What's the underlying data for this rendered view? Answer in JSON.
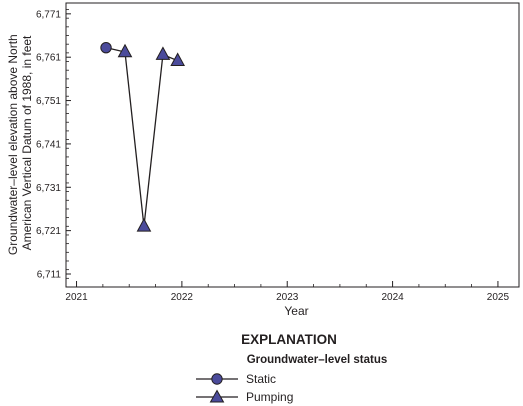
{
  "chart_data": {
    "type": "line",
    "xlabel": "Year",
    "ylabel_lines": [
      "Groundwater–level elevation above North",
      "American Vertical Datum of 1988, in feet"
    ],
    "xlim": [
      2020.9,
      2025.2
    ],
    "ylim": [
      6708,
      6773.5
    ],
    "x_ticks": [
      2021,
      2022,
      2023,
      2024,
      2025
    ],
    "x_tick_labels": [
      "2021",
      "2022",
      "2023",
      "2024",
      "2025"
    ],
    "y_ticks": [
      6711,
      6721,
      6731,
      6741,
      6751,
      6761,
      6771
    ],
    "y_tick_labels": [
      "6,711",
      "6,721",
      "6,731",
      "6,741",
      "6,751",
      "6,761",
      "6,771"
    ],
    "grid": false,
    "line": {
      "x": [
        2021.28,
        2021.46,
        2021.64,
        2021.82,
        2021.96
      ],
      "y": [
        6763.2,
        6762.2,
        6722.0,
        6761.6,
        6760.2
      ]
    },
    "series": [
      {
        "name": "Static",
        "marker": "circle",
        "x": [
          2021.28
        ],
        "y": [
          6763.2
        ]
      },
      {
        "name": "Pumping",
        "marker": "triangle",
        "x": [
          2021.46,
          2021.64,
          2021.82,
          2021.96
        ],
        "y": [
          6762.2,
          6722.0,
          6761.6,
          6760.2
        ]
      }
    ],
    "legend": {
      "heading": "EXPLANATION",
      "subheading": "Groundwater–level status",
      "placement": "bottom-center"
    },
    "colors": {
      "marker_fill": "#4b4b9b",
      "line": "#231f20"
    }
  }
}
